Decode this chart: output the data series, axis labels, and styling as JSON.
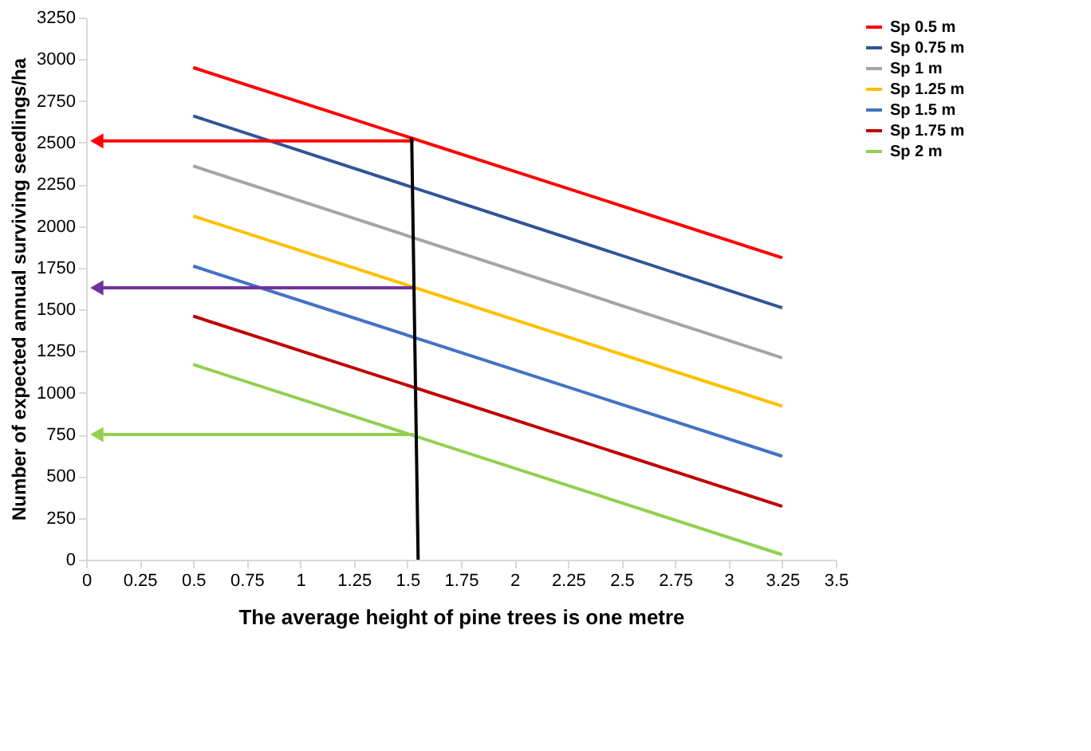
{
  "chart_data": {
    "type": "line",
    "xlabel": "The average height of pine trees is one metre",
    "ylabel": "Number of expected annual surviving seedlings/ha",
    "xlim": [
      0,
      3.5
    ],
    "xticks": [
      0,
      0.25,
      0.5,
      0.75,
      1,
      1.25,
      1.5,
      1.75,
      2,
      2.25,
      2.5,
      2.75,
      3,
      3.25,
      3.5
    ],
    "ylim": [
      0,
      3250
    ],
    "yticks": [
      0,
      250,
      500,
      750,
      1000,
      1250,
      1500,
      1750,
      2000,
      2250,
      2500,
      2750,
      3000,
      3250
    ],
    "grid": false,
    "legend": "right",
    "marker": "none",
    "line_style": "solid",
    "x": [
      0.5,
      3.25
    ],
    "series": [
      {
        "name": "Sp 0.5 m",
        "color": "#ff0000",
        "values": [
          2950,
          1810
        ]
      },
      {
        "name": "Sp 0.75 m",
        "color": "#2f5597",
        "values": [
          2660,
          1510
        ]
      },
      {
        "name": "Sp 1 m",
        "color": "#a5a5a5",
        "values": [
          2360,
          1210
        ]
      },
      {
        "name": "Sp 1.25 m",
        "color": "#ffc000",
        "values": [
          2060,
          920
        ]
      },
      {
        "name": "Sp 1.5 m",
        "color": "#4472c4",
        "values": [
          1760,
          620
        ]
      },
      {
        "name": "Sp 1.75 m",
        "color": "#c00000",
        "values": [
          1460,
          320
        ]
      },
      {
        "name": "Sp 2 m",
        "color": "#92d050",
        "values": [
          1170,
          30
        ]
      },
      {
        "color": "#ff0000",
        "x": [
          1.53,
          0.05
        ],
        "values": [
          2510,
          2510
        ],
        "marker": "triangle"
      },
      {
        "color": "#7030a0",
        "x": [
          1.53,
          0.05
        ],
        "values": [
          1630,
          1630
        ],
        "marker": "triangle"
      },
      {
        "color": "#92d050",
        "x": [
          1.53,
          0.05
        ],
        "values": [
          750,
          750
        ],
        "marker": "triangle"
      },
      {
        "color": "#000000",
        "x": [
          1.52,
          1.55
        ],
        "values": [
          2530,
          0
        ]
      }
    ]
  }
}
